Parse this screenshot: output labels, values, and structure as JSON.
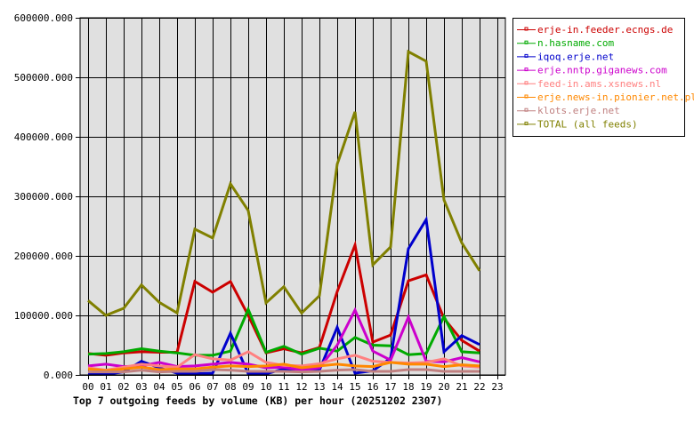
{
  "chart_data": {
    "type": "line",
    "title": "Top 7 outgoing feeds by volume (KB) per hour (20251202 2307)",
    "xlabel": "",
    "ylabel": "",
    "ylim": [
      0,
      600000
    ],
    "yticks": [
      "0.000",
      "100000.000",
      "200000.000",
      "300000.000",
      "400000.000",
      "500000.000",
      "600000.000"
    ],
    "x": [
      "00",
      "01",
      "02",
      "03",
      "04",
      "05",
      "06",
      "07",
      "08",
      "09",
      "10",
      "11",
      "12",
      "13",
      "14",
      "15",
      "16",
      "17",
      "18",
      "19",
      "20",
      "21",
      "22",
      "23"
    ],
    "grid": true,
    "legend_position": "right",
    "series": [
      {
        "name": "erje-in.feeder.ecngs.de",
        "color": "#cc0000",
        "values": [
          36000,
          33000,
          37000,
          39000,
          38000,
          38000,
          157000,
          139000,
          157000,
          100000,
          37000,
          44000,
          37000,
          46000,
          140000,
          218000,
          55000,
          67000,
          158000,
          168000,
          95000,
          58000,
          40000
        ]
      },
      {
        "name": "n.hasname.com",
        "color": "#00aa00",
        "values": [
          35000,
          36000,
          39000,
          44000,
          40000,
          37000,
          33000,
          33000,
          40000,
          110000,
          38000,
          48000,
          35000,
          45000,
          40000,
          63000,
          50000,
          49000,
          34000,
          36000,
          98000,
          39000,
          37000
        ]
      },
      {
        "name": "iqoq.erje.net",
        "color": "#0000cc",
        "values": [
          3000,
          1000,
          5000,
          23000,
          12000,
          3000,
          2000,
          3000,
          70000,
          2000,
          2000,
          10000,
          5000,
          8000,
          80000,
          3000,
          7000,
          28000,
          212000,
          261000,
          39000,
          66000,
          51000
        ]
      },
      {
        "name": "erje.nntp.giganews.com",
        "color": "#cc00cc",
        "values": [
          15000,
          18000,
          14000,
          15000,
          21000,
          14000,
          15000,
          18000,
          21000,
          18000,
          12000,
          13000,
          8000,
          12000,
          50000,
          109000,
          40000,
          25000,
          97000,
          23000,
          22000,
          29000,
          22000
        ]
      },
      {
        "name": "feed-in.ams.xsnews.nl",
        "color": "#ff8080",
        "values": [
          12000,
          8000,
          13000,
          18000,
          15000,
          13000,
          34000,
          27000,
          25000,
          39000,
          21000,
          16000,
          15000,
          19000,
          27000,
          33000,
          23000,
          21000,
          20000,
          21000,
          27000,
          15000,
          13000
        ]
      },
      {
        "name": "erje.news-in.pionier.net.pl",
        "color": "#ff8800",
        "values": [
          10000,
          7000,
          10000,
          13000,
          9000,
          10000,
          10000,
          13000,
          15000,
          14000,
          15000,
          18000,
          12000,
          15000,
          18000,
          15000,
          14000,
          21000,
          18000,
          18000,
          14000,
          17000,
          15000
        ]
      },
      {
        "name": "klots.erje.net",
        "color": "#c08080",
        "values": [
          5000,
          5000,
          5000,
          8000,
          5000,
          6000,
          6000,
          9000,
          8000,
          6000,
          6000,
          6000,
          5000,
          6000,
          8000,
          9000,
          6000,
          6000,
          9000,
          9000,
          6000,
          6000,
          6000
        ]
      },
      {
        "name": "TOTAL (all feeds)",
        "color": "#808000",
        "values": [
          125000,
          100000,
          112000,
          151000,
          122000,
          104000,
          245000,
          230000,
          321000,
          276000,
          121000,
          148000,
          104000,
          133000,
          354000,
          442000,
          185000,
          215000,
          543000,
          527000,
          294000,
          222000,
          175000
        ]
      }
    ]
  },
  "colors": {
    "plot_background": "#e0e0e0",
    "grid": "#000000",
    "page_background": "#ffffff"
  }
}
